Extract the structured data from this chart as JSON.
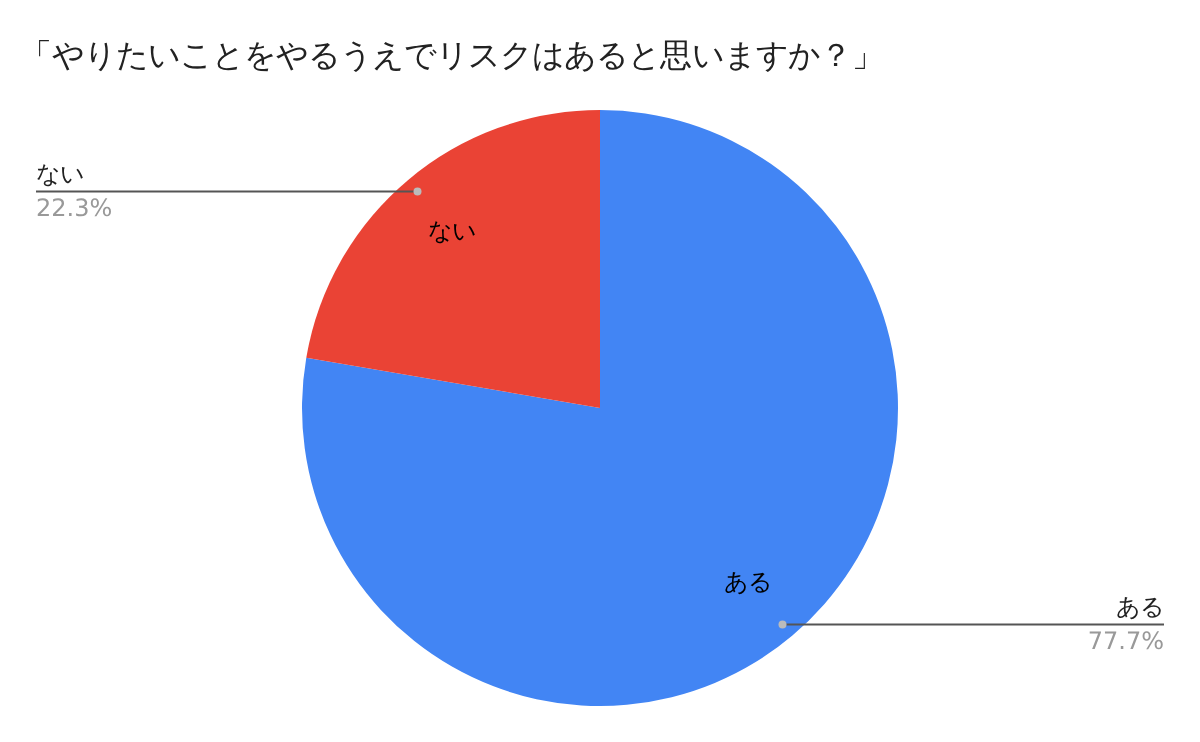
{
  "chart_data": {
    "type": "pie",
    "title": "「やりたいことをやるうえでリスクはあると思いますか？」",
    "categories": [
      "ある",
      "ない"
    ],
    "values": [
      77.7,
      22.3
    ],
    "colors": [
      "#4285f4",
      "#ea4335"
    ],
    "value_labels": [
      "77.7%",
      "22.3%"
    ],
    "legend": false
  }
}
